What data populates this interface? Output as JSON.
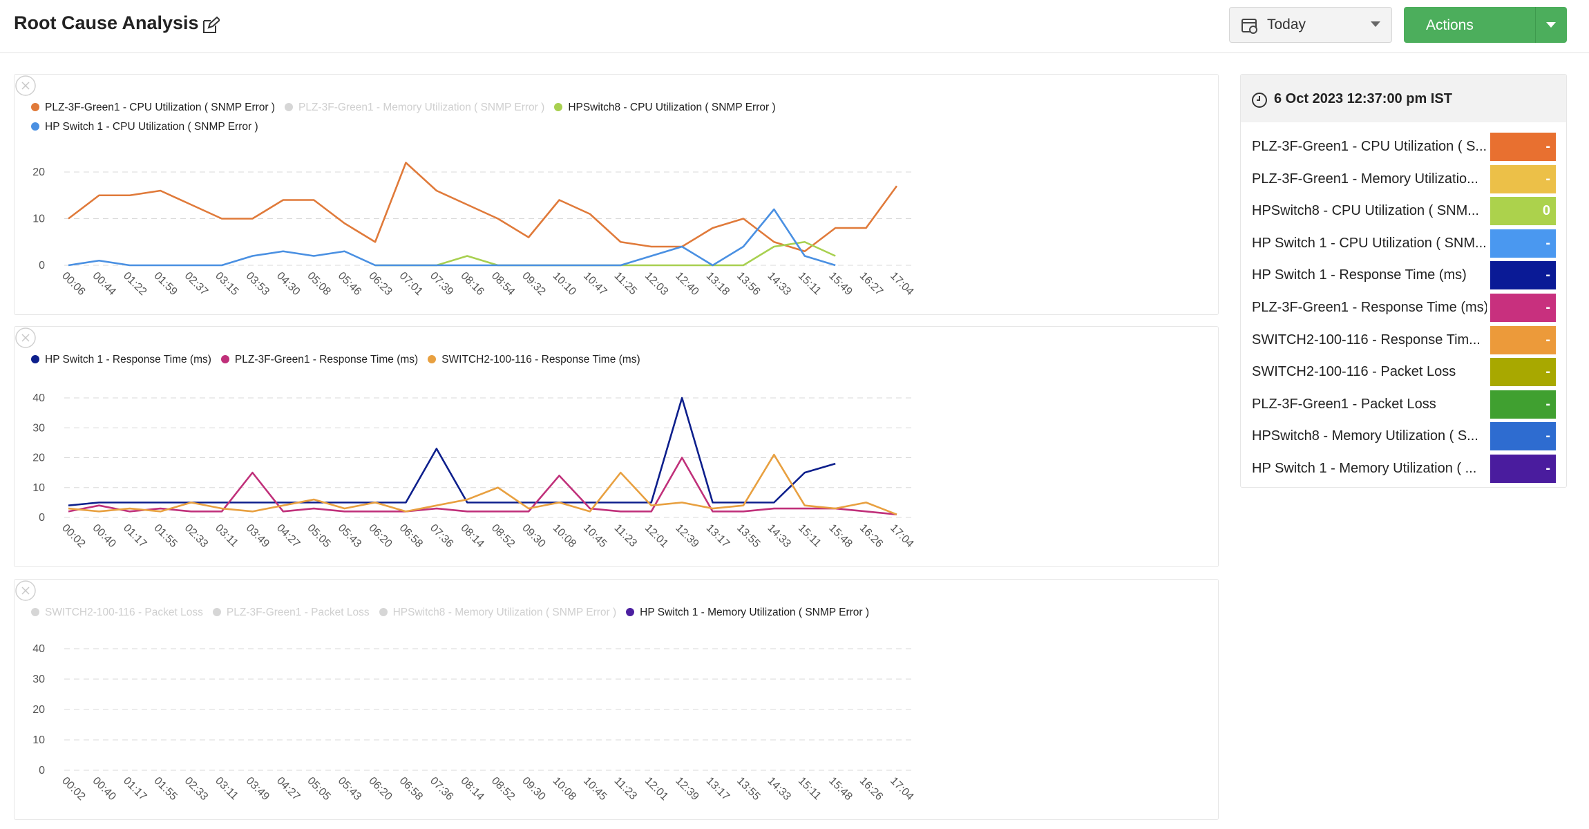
{
  "header": {
    "title": "Root Cause Analysis",
    "date_filter": "Today",
    "actions": "Actions"
  },
  "chart_data": [
    {
      "type": "line",
      "categories": [
        "00:06",
        "00:44",
        "01:22",
        "01:59",
        "02:37",
        "03:15",
        "03:53",
        "04:30",
        "05:08",
        "05:46",
        "06:23",
        "07:01",
        "07:39",
        "08:16",
        "08:54",
        "09:32",
        "10:10",
        "10:47",
        "11:25",
        "12:03",
        "12:40",
        "13:18",
        "13:56",
        "14:33",
        "15:11",
        "15:49",
        "16:27",
        "17:04"
      ],
      "ylim": [
        0,
        20
      ],
      "yticks": [
        0,
        10,
        20
      ],
      "grid": true,
      "series": [
        {
          "name": "PLZ-3F-Green1 - CPU Utilization ( SNMP Error )",
          "color": "#e07a3a",
          "values": [
            10,
            15,
            15,
            16,
            13,
            10,
            10,
            14,
            14,
            9,
            5,
            22,
            16,
            13,
            10,
            6,
            14,
            11,
            5,
            4,
            4,
            8,
            10,
            5,
            3,
            8,
            8,
            17
          ]
        },
        {
          "name": "PLZ-3F-Green1 - Memory Utilization ( SNMP Error )",
          "color": "#f0c040",
          "hidden": true,
          "values": [
            null,
            null,
            null,
            null,
            null,
            null,
            null,
            null,
            null,
            null,
            null,
            null,
            null,
            null,
            null,
            null,
            null,
            null,
            null,
            null,
            null,
            null,
            null,
            null,
            null,
            null,
            null,
            null
          ]
        },
        {
          "name": "HPSwitch8 - CPU Utilization ( SNMP Error )",
          "color": "#a8d050",
          "values": [
            null,
            null,
            null,
            null,
            null,
            null,
            null,
            null,
            null,
            null,
            0,
            0,
            0,
            2,
            0,
            0,
            0,
            0,
            0,
            0,
            0,
            0,
            0,
            4,
            5,
            2,
            null,
            null
          ]
        },
        {
          "name": "HP Switch 1 - CPU Utilization ( SNMP Error )",
          "color": "#4a90e2",
          "values": [
            0,
            1,
            0,
            0,
            0,
            0,
            2,
            3,
            2,
            3,
            0,
            0,
            0,
            0,
            0,
            0,
            0,
            0,
            0,
            2,
            4,
            0,
            4,
            12,
            2,
            0,
            null,
            null
          ]
        }
      ]
    },
    {
      "type": "line",
      "categories": [
        "00:02",
        "00:40",
        "01:17",
        "01:55",
        "02:33",
        "03:11",
        "03:49",
        "04:27",
        "05:05",
        "05:43",
        "06:20",
        "06:58",
        "07:36",
        "08:14",
        "08:52",
        "09:30",
        "10:08",
        "10:45",
        "11:23",
        "12:01",
        "12:39",
        "13:17",
        "13:55",
        "14:33",
        "15:11",
        "15:48",
        "16:26",
        "17:04"
      ],
      "ylim": [
        0,
        40
      ],
      "yticks": [
        0,
        10,
        20,
        30,
        40
      ],
      "grid": true,
      "series": [
        {
          "name": "HP Switch 1 - Response Time (ms)",
          "color": "#0d1f8c",
          "values": [
            4,
            5,
            5,
            5,
            5,
            5,
            5,
            5,
            5,
            5,
            5,
            5,
            23,
            5,
            5,
            5,
            5,
            5,
            5,
            5,
            40,
            5,
            5,
            5,
            15,
            18,
            null,
            null
          ]
        },
        {
          "name": "PLZ-3F-Green1 - Response Time (ms)",
          "color": "#c0307a",
          "values": [
            2,
            4,
            2,
            3,
            2,
            2,
            15,
            2,
            3,
            2,
            2,
            2,
            3,
            2,
            2,
            2,
            14,
            3,
            2,
            2,
            20,
            2,
            2,
            3,
            3,
            3,
            2,
            1
          ]
        },
        {
          "name": "SWITCH2-100-116 - Response Time (ms)",
          "color": "#e8a040",
          "values": [
            3,
            2,
            3,
            2,
            5,
            3,
            2,
            4,
            6,
            3,
            5,
            2,
            4,
            6,
            10,
            3,
            5,
            2,
            15,
            4,
            5,
            3,
            4,
            21,
            4,
            3,
            5,
            1
          ]
        }
      ]
    },
    {
      "type": "line",
      "categories": [
        "00:02",
        "00:40",
        "01:17",
        "01:55",
        "02:33",
        "03:11",
        "03:49",
        "04:27",
        "05:05",
        "05:43",
        "06:20",
        "06:58",
        "07:36",
        "08:14",
        "08:52",
        "09:30",
        "10:08",
        "10:45",
        "11:23",
        "12:01",
        "12:39",
        "13:17",
        "13:55",
        "14:33",
        "15:11",
        "15:48",
        "16:26",
        "17:04"
      ],
      "ylim": [
        0,
        40
      ],
      "yticks": [
        0,
        10,
        20,
        30,
        40
      ],
      "grid": true,
      "series": [
        {
          "name": "SWITCH2-100-116 - Packet Loss",
          "color": "#a8a800",
          "hidden": true,
          "values": [
            null,
            null,
            null,
            null,
            null,
            null,
            null,
            null,
            null,
            null,
            null,
            null,
            null,
            null,
            null,
            null,
            null,
            null,
            null,
            null,
            null,
            null,
            null,
            null,
            null,
            null,
            null,
            null
          ]
        },
        {
          "name": "PLZ-3F-Green1 - Packet Loss",
          "color": "#40a030",
          "hidden": true,
          "values": [
            null,
            null,
            null,
            null,
            null,
            null,
            null,
            null,
            null,
            null,
            null,
            null,
            null,
            null,
            null,
            null,
            null,
            null,
            null,
            null,
            null,
            null,
            null,
            null,
            null,
            null,
            null,
            null
          ]
        },
        {
          "name": "HPSwitch8 - Memory Utilization ( SNMP Error )",
          "color": "#3070d0",
          "hidden": true,
          "values": [
            null,
            null,
            null,
            null,
            null,
            null,
            null,
            null,
            null,
            null,
            null,
            null,
            null,
            null,
            null,
            null,
            null,
            null,
            null,
            null,
            null,
            null,
            null,
            null,
            null,
            null,
            null,
            null
          ]
        },
        {
          "name": "HP Switch 1 - Memory Utilization ( SNMP Error )",
          "color": "#4b1fa0",
          "values": [
            null,
            null,
            null,
            null,
            null,
            null,
            null,
            null,
            null,
            null,
            null,
            null,
            null,
            null,
            null,
            null,
            null,
            null,
            null,
            null,
            null,
            null,
            null,
            null,
            null,
            null,
            null,
            null
          ]
        }
      ]
    }
  ],
  "summary": {
    "timestamp": "6 Oct 2023 12:37:00 pm IST",
    "items": [
      {
        "name": "PLZ-3F-Green1 - CPU Utilization ( S...",
        "color": "#e87030",
        "value": "-"
      },
      {
        "name": "PLZ-3F-Green1 - Memory Utilizatio...",
        "color": "#ecc048",
        "value": "-"
      },
      {
        "name": "HPSwitch8 - CPU Utilization ( SNM...",
        "color": "#acd24c",
        "value": "0"
      },
      {
        "name": "HP Switch 1 - CPU Utilization ( SNM...",
        "color": "#4a98f0",
        "value": "-"
      },
      {
        "name": "HP Switch 1 - Response Time (ms)",
        "color": "#0a1a96",
        "value": "-"
      },
      {
        "name": "PLZ-3F-Green1 - Response Time (ms)",
        "color": "#c8307e",
        "value": "-"
      },
      {
        "name": "SWITCH2-100-116 - Response Tim...",
        "color": "#ec9a3a",
        "value": "-"
      },
      {
        "name": "SWITCH2-100-116 - Packet Loss",
        "color": "#a8a800",
        "value": "-"
      },
      {
        "name": "PLZ-3F-Green1 - Packet Loss",
        "color": "#40a030",
        "value": "-"
      },
      {
        "name": "HPSwitch8 - Memory Utilization ( S...",
        "color": "#2e6cd0",
        "value": "-"
      },
      {
        "name": "HP Switch 1 - Memory Utilization ( ...",
        "color": "#4a1c9e",
        "value": "-"
      }
    ]
  }
}
